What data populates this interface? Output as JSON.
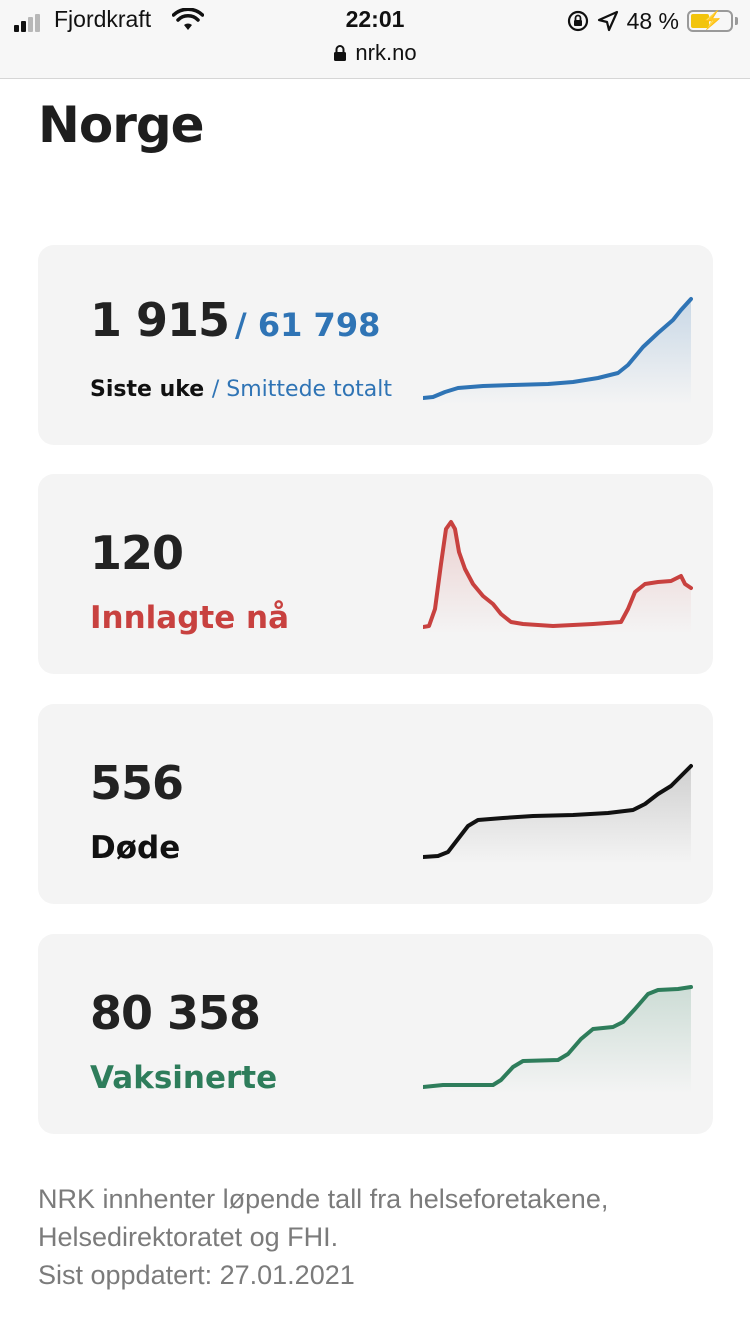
{
  "status_bar": {
    "carrier": "Fjordkraft",
    "time": "22:01",
    "battery": "48 %",
    "url": "nrk.no"
  },
  "page": {
    "title": "Norge"
  },
  "cards": [
    {
      "value": "1 915",
      "secondary_value": "/ 61 798",
      "label": "Siste uke",
      "secondary_label": "/ Smittede totalt",
      "color": "#2f74b5"
    },
    {
      "value": "120",
      "label": "Innlagte nå",
      "color": "#c8413f"
    },
    {
      "value": "556",
      "label": "Døde",
      "color": "#111111"
    },
    {
      "value": "80 358",
      "label": "Vaksinerte",
      "color": "#2e7d5b"
    }
  ],
  "footer": {
    "line1": "NRK innhenter løpende tall fra helseforetakene,",
    "line2": "Helsedirektoratet og FHI.",
    "line3": "Sist oppdatert: 27.01.2021"
  }
}
